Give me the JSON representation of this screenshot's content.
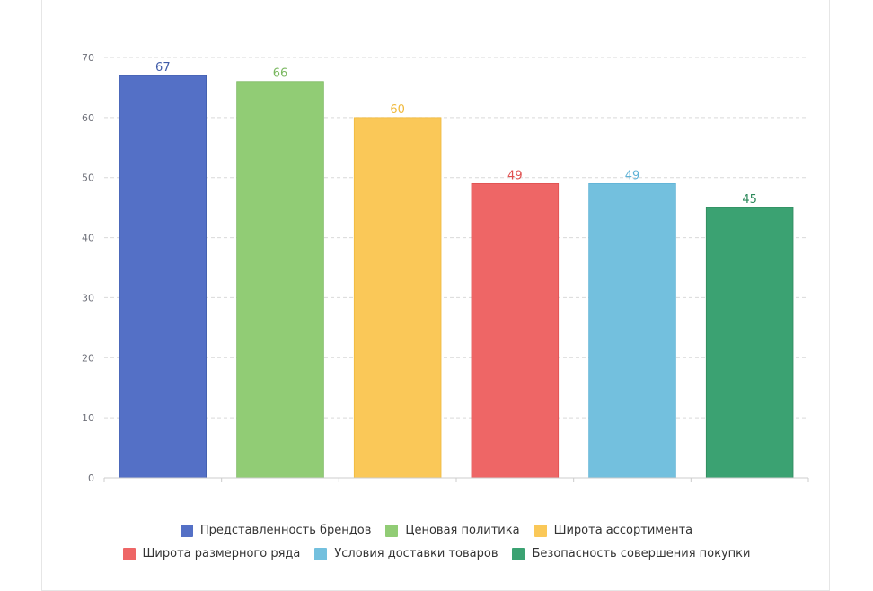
{
  "chart_data": {
    "type": "bar",
    "categories": [
      "Представленность брендов",
      "Ценовая политика",
      "Широта ассортимента",
      "Широта размерного ряда",
      "Условия доставки товаров",
      "Безопасность совершения покупки"
    ],
    "values": [
      67,
      66,
      60,
      49,
      49,
      45
    ],
    "colors": [
      "#5470c6",
      "#91cc75",
      "#fac858",
      "#ee6666",
      "#73c0de",
      "#3ba272"
    ],
    "label_colors": [
      "#3f5ba8",
      "#7ab860",
      "#f0b93c",
      "#e05050",
      "#5fb2d6",
      "#2e8a5c"
    ],
    "ylim": [
      0,
      70
    ],
    "yticks": [
      "0",
      "10",
      "20",
      "30",
      "40",
      "50",
      "60",
      "70"
    ],
    "grid": true,
    "legend_position": "bottom",
    "title": "",
    "xlabel": "",
    "ylabel": ""
  },
  "legend": [
    {
      "label": "Представленность брендов",
      "color": "#5470c6"
    },
    {
      "label": "Ценовая политика",
      "color": "#91cc75"
    },
    {
      "label": "Широта ассортимента",
      "color": "#fac858"
    },
    {
      "label": "Широта размерного ряда",
      "color": "#ee6666"
    },
    {
      "label": "Условия доставки товаров",
      "color": "#73c0de"
    },
    {
      "label": "Безопасность совершения покупки",
      "color": "#3ba272"
    }
  ]
}
